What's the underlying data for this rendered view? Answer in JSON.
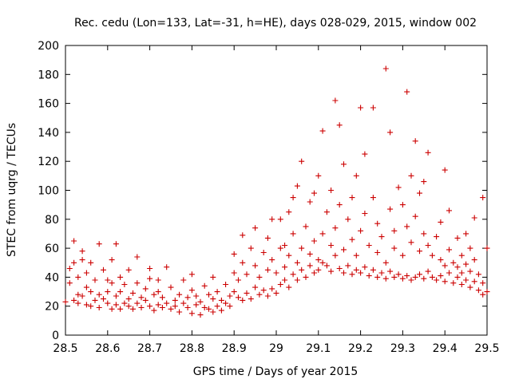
{
  "chart_data": {
    "type": "scatter",
    "title": "Rec. cedu (Lon=133, Lat=-31, h=HE), days 028-029, 2015, window 002",
    "xlabel": "GPS time / Days of year 2015",
    "ylabel": "STEC from uqrg / TECUs",
    "xlim": [
      28.5,
      29.5
    ],
    "ylim": [
      0,
      200
    ],
    "x_tick_labels": [
      "28.5",
      "28.6",
      "28.7",
      "28.8",
      "28.9",
      "29",
      "29.1",
      "29.2",
      "29.3",
      "29.4",
      "29.5"
    ],
    "y_tick_labels": [
      "0",
      "20",
      "40",
      "60",
      "80",
      "100",
      "120",
      "140",
      "160",
      "180",
      "200"
    ],
    "marker": "+",
    "color": "#cc0000",
    "legend": "none",
    "grid": false,
    "series": [
      {
        "name": "STEC",
        "points": [
          [
            28.5,
            23
          ],
          [
            28.51,
            36
          ],
          [
            28.51,
            46
          ],
          [
            28.52,
            24
          ],
          [
            28.52,
            50
          ],
          [
            28.52,
            65
          ],
          [
            28.53,
            22
          ],
          [
            28.53,
            28
          ],
          [
            28.53,
            40
          ],
          [
            28.54,
            27
          ],
          [
            28.54,
            52
          ],
          [
            28.54,
            58
          ],
          [
            28.55,
            21
          ],
          [
            28.55,
            33
          ],
          [
            28.55,
            43
          ],
          [
            28.56,
            20
          ],
          [
            28.56,
            30
          ],
          [
            28.56,
            50
          ],
          [
            28.57,
            24
          ],
          [
            28.57,
            38
          ],
          [
            28.58,
            28
          ],
          [
            28.58,
            19
          ],
          [
            28.58,
            63
          ],
          [
            28.59,
            25
          ],
          [
            28.59,
            45
          ],
          [
            28.6,
            22
          ],
          [
            28.6,
            30
          ],
          [
            28.6,
            38
          ],
          [
            28.61,
            18
          ],
          [
            28.61,
            36
          ],
          [
            28.61,
            52
          ],
          [
            28.62,
            21
          ],
          [
            28.62,
            27
          ],
          [
            28.62,
            63
          ],
          [
            28.63,
            18
          ],
          [
            28.63,
            30
          ],
          [
            28.63,
            40
          ],
          [
            28.64,
            22
          ],
          [
            28.64,
            35
          ],
          [
            28.65,
            20
          ],
          [
            28.65,
            25
          ],
          [
            28.65,
            45
          ],
          [
            28.66,
            18
          ],
          [
            28.66,
            29
          ],
          [
            28.67,
            22
          ],
          [
            28.67,
            54
          ],
          [
            28.67,
            36
          ],
          [
            28.68,
            19
          ],
          [
            28.68,
            26
          ],
          [
            28.69,
            24
          ],
          [
            28.69,
            32
          ],
          [
            28.7,
            20
          ],
          [
            28.7,
            39
          ],
          [
            28.7,
            46
          ],
          [
            28.71,
            17
          ],
          [
            28.71,
            28
          ],
          [
            28.72,
            21
          ],
          [
            28.72,
            30
          ],
          [
            28.72,
            38
          ],
          [
            28.73,
            19
          ],
          [
            28.73,
            26
          ],
          [
            28.74,
            22
          ],
          [
            28.74,
            47
          ],
          [
            28.75,
            18
          ],
          [
            28.75,
            33
          ],
          [
            28.76,
            20
          ],
          [
            28.76,
            24
          ],
          [
            28.77,
            16
          ],
          [
            28.77,
            28
          ],
          [
            28.78,
            22
          ],
          [
            28.78,
            38
          ],
          [
            28.79,
            19
          ],
          [
            28.79,
            26
          ],
          [
            28.8,
            15
          ],
          [
            28.8,
            31
          ],
          [
            28.8,
            42
          ],
          [
            28.81,
            21
          ],
          [
            28.81,
            27
          ],
          [
            28.82,
            14
          ],
          [
            28.82,
            23
          ],
          [
            28.83,
            19
          ],
          [
            28.83,
            34
          ],
          [
            28.84,
            18
          ],
          [
            28.84,
            28
          ],
          [
            28.85,
            16
          ],
          [
            28.85,
            25
          ],
          [
            28.85,
            40
          ],
          [
            28.86,
            20
          ],
          [
            28.86,
            30
          ],
          [
            28.87,
            17
          ],
          [
            28.87,
            24
          ],
          [
            28.88,
            22
          ],
          [
            28.88,
            35
          ],
          [
            28.89,
            27
          ],
          [
            28.89,
            20
          ],
          [
            28.9,
            30
          ],
          [
            28.9,
            43
          ],
          [
            28.9,
            56
          ],
          [
            28.91,
            26
          ],
          [
            28.91,
            38
          ],
          [
            28.92,
            24
          ],
          [
            28.92,
            50
          ],
          [
            28.92,
            69
          ],
          [
            28.93,
            29
          ],
          [
            28.93,
            42
          ],
          [
            28.94,
            25
          ],
          [
            28.94,
            60
          ],
          [
            28.95,
            33
          ],
          [
            28.95,
            48
          ],
          [
            28.95,
            74
          ],
          [
            28.96,
            28
          ],
          [
            28.96,
            40
          ],
          [
            28.97,
            31
          ],
          [
            28.97,
            57
          ],
          [
            28.98,
            27
          ],
          [
            28.98,
            45
          ],
          [
            28.98,
            67
          ],
          [
            28.99,
            32
          ],
          [
            28.99,
            52
          ],
          [
            28.99,
            80
          ],
          [
            29.0,
            29
          ],
          [
            29.0,
            43
          ],
          [
            29.01,
            35
          ],
          [
            29.01,
            60
          ],
          [
            29.01,
            80
          ],
          [
            29.02,
            38
          ],
          [
            29.02,
            47
          ],
          [
            29.02,
            62
          ],
          [
            29.03,
            33
          ],
          [
            29.03,
            55
          ],
          [
            29.03,
            85
          ],
          [
            29.04,
            42
          ],
          [
            29.04,
            70
          ],
          [
            29.04,
            95
          ],
          [
            29.05,
            38
          ],
          [
            29.05,
            50
          ],
          [
            29.05,
            103
          ],
          [
            29.06,
            45
          ],
          [
            29.06,
            60
          ],
          [
            29.06,
            120
          ],
          [
            29.07,
            40
          ],
          [
            29.07,
            75
          ],
          [
            29.08,
            48
          ],
          [
            29.08,
            56
          ],
          [
            29.08,
            92
          ],
          [
            29.09,
            43
          ],
          [
            29.09,
            65
          ],
          [
            29.09,
            98
          ],
          [
            29.1,
            45
          ],
          [
            29.1,
            52
          ],
          [
            29.1,
            110
          ],
          [
            29.11,
            50
          ],
          [
            29.11,
            70
          ],
          [
            29.11,
            141
          ],
          [
            29.12,
            48
          ],
          [
            29.12,
            85
          ],
          [
            29.13,
            44
          ],
          [
            29.13,
            62
          ],
          [
            29.13,
            100
          ],
          [
            29.14,
            55
          ],
          [
            29.14,
            74
          ],
          [
            29.14,
            162
          ],
          [
            29.15,
            46
          ],
          [
            29.15,
            90
          ],
          [
            29.15,
            145
          ],
          [
            29.16,
            43
          ],
          [
            29.16,
            59
          ],
          [
            29.16,
            118
          ],
          [
            29.17,
            48
          ],
          [
            29.17,
            80
          ],
          [
            29.18,
            42
          ],
          [
            29.18,
            66
          ],
          [
            29.18,
            95
          ],
          [
            29.19,
            45
          ],
          [
            29.19,
            55
          ],
          [
            29.19,
            110
          ],
          [
            29.2,
            43
          ],
          [
            29.2,
            72
          ],
          [
            29.2,
            157
          ],
          [
            29.21,
            47
          ],
          [
            29.21,
            84
          ],
          [
            29.21,
            125
          ],
          [
            29.22,
            41
          ],
          [
            29.22,
            62
          ],
          [
            29.23,
            45
          ],
          [
            29.23,
            95
          ],
          [
            29.23,
            157
          ],
          [
            29.24,
            40
          ],
          [
            29.24,
            57
          ],
          [
            29.24,
            77
          ],
          [
            29.25,
            43
          ],
          [
            29.25,
            68
          ],
          [
            29.26,
            39
          ],
          [
            29.26,
            50
          ],
          [
            29.26,
            184
          ],
          [
            29.27,
            44
          ],
          [
            29.27,
            87
          ],
          [
            29.27,
            140
          ],
          [
            29.28,
            40
          ],
          [
            29.28,
            60
          ],
          [
            29.28,
            72
          ],
          [
            29.29,
            42
          ],
          [
            29.29,
            102
          ],
          [
            29.3,
            39
          ],
          [
            29.3,
            55
          ],
          [
            29.3,
            90
          ],
          [
            29.31,
            41
          ],
          [
            29.31,
            75
          ],
          [
            29.31,
            168
          ],
          [
            29.32,
            38
          ],
          [
            29.32,
            64
          ],
          [
            29.32,
            110
          ],
          [
            29.33,
            40
          ],
          [
            29.33,
            82
          ],
          [
            29.33,
            134
          ],
          [
            29.34,
            42
          ],
          [
            29.34,
            58
          ],
          [
            29.34,
            98
          ],
          [
            29.35,
            39
          ],
          [
            29.35,
            70
          ],
          [
            29.35,
            106
          ],
          [
            29.36,
            44
          ],
          [
            29.36,
            62
          ],
          [
            29.36,
            126
          ],
          [
            29.37,
            40
          ],
          [
            29.37,
            55
          ],
          [
            29.38,
            38
          ],
          [
            29.38,
            68
          ],
          [
            29.39,
            41
          ],
          [
            29.39,
            52
          ],
          [
            29.39,
            78
          ],
          [
            29.4,
            37
          ],
          [
            29.4,
            48
          ],
          [
            29.4,
            114
          ],
          [
            29.41,
            43
          ],
          [
            29.41,
            59
          ],
          [
            29.41,
            86
          ],
          [
            29.42,
            36
          ],
          [
            29.42,
            50
          ],
          [
            29.43,
            40
          ],
          [
            29.43,
            47
          ],
          [
            29.43,
            67
          ],
          [
            29.44,
            35
          ],
          [
            29.44,
            43
          ],
          [
            29.44,
            55
          ],
          [
            29.45,
            38
          ],
          [
            29.45,
            49
          ],
          [
            29.45,
            70
          ],
          [
            29.46,
            33
          ],
          [
            29.46,
            44
          ],
          [
            29.46,
            60
          ],
          [
            29.47,
            37
          ],
          [
            29.47,
            81
          ],
          [
            29.47,
            52
          ],
          [
            29.48,
            31
          ],
          [
            29.48,
            42
          ],
          [
            29.49,
            28
          ],
          [
            29.49,
            36
          ],
          [
            29.49,
            95
          ],
          [
            29.5,
            30
          ],
          [
            29.5,
            60
          ]
        ]
      }
    ]
  }
}
